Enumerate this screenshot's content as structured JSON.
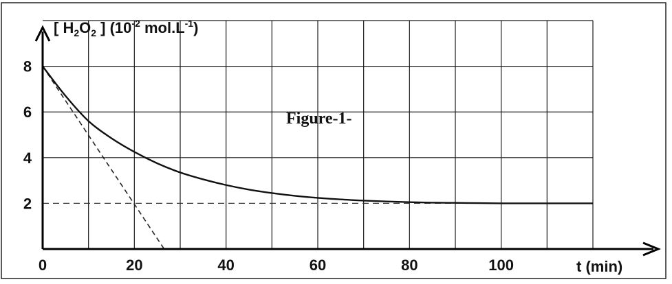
{
  "chart_data": {
    "type": "line",
    "title": "",
    "ylabel": {
      "bracket_open": "[ H",
      "sub1": "2",
      "mid": "O",
      "sub2": "2",
      "bracket_close": " ] (10",
      "exp1": "-2",
      "unit": " mol.L",
      "exp2": "-1",
      "paren_close": ")"
    },
    "xlabel": "t (min)",
    "annotation": "Figure-1-",
    "xlim": [
      0,
      120
    ],
    "ylim": [
      0,
      10
    ],
    "x_ticks": [
      0,
      20,
      40,
      60,
      80,
      100
    ],
    "y_ticks": [
      2,
      4,
      6,
      8
    ],
    "grid": {
      "on": true,
      "x_step": 10,
      "y_step": 2
    },
    "series": [
      {
        "style": "solid",
        "x": [
          0,
          5,
          10,
          15,
          20,
          25,
          30,
          35,
          40,
          45,
          50,
          55,
          60,
          65,
          70,
          75,
          80,
          85,
          90,
          95,
          100,
          105,
          110,
          115,
          120
        ],
        "y": [
          8.0,
          6.7,
          5.6,
          4.85,
          4.25,
          3.75,
          3.35,
          3.05,
          2.8,
          2.6,
          2.45,
          2.33,
          2.24,
          2.17,
          2.12,
          2.08,
          2.05,
          2.03,
          2.02,
          2.01,
          2.0,
          2.0,
          2.0,
          2.0,
          2.0
        ]
      }
    ],
    "tangent": {
      "style": "dashed",
      "x": [
        0,
        26.5
      ],
      "y": [
        8,
        0
      ]
    },
    "asymptote": {
      "style": "dashed",
      "y": 2
    }
  }
}
